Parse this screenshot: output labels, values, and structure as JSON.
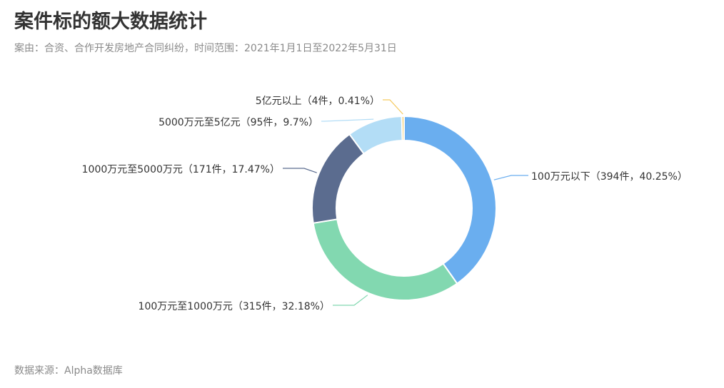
{
  "header": {
    "title": "案件标的额大数据统计",
    "subtitle": "案由：合资、合作开发房地产合同纠纷，时间范围：2021年1月1日至2022年5月31日"
  },
  "footer": {
    "source": "数据来源：Alpha数据库"
  },
  "chart_data": {
    "type": "pie",
    "variant": "donut",
    "categories": [
      "100万元以下",
      "100万元至1000万元",
      "1000万元至5000万元",
      "5000万元至5亿元",
      "5亿元以上"
    ],
    "values": [
      394,
      315,
      171,
      95,
      4
    ],
    "percents": [
      40.25,
      32.18,
      17.47,
      9.7,
      0.41
    ],
    "labels": [
      "100万元以下（394件，40.25%）",
      "100万元至1000万元（315件，32.18%）",
      "1000万元至5000万元（171件，17.47%）",
      "5000万元至5亿元（95件，9.7%）",
      "5亿元以上（4件，0.41%）"
    ],
    "colors": [
      "#6aaeef",
      "#82d8b0",
      "#5b6c8f",
      "#b3ddf6",
      "#f5c95e"
    ],
    "start_angle": "12 o'clock",
    "direction": "clockwise"
  }
}
